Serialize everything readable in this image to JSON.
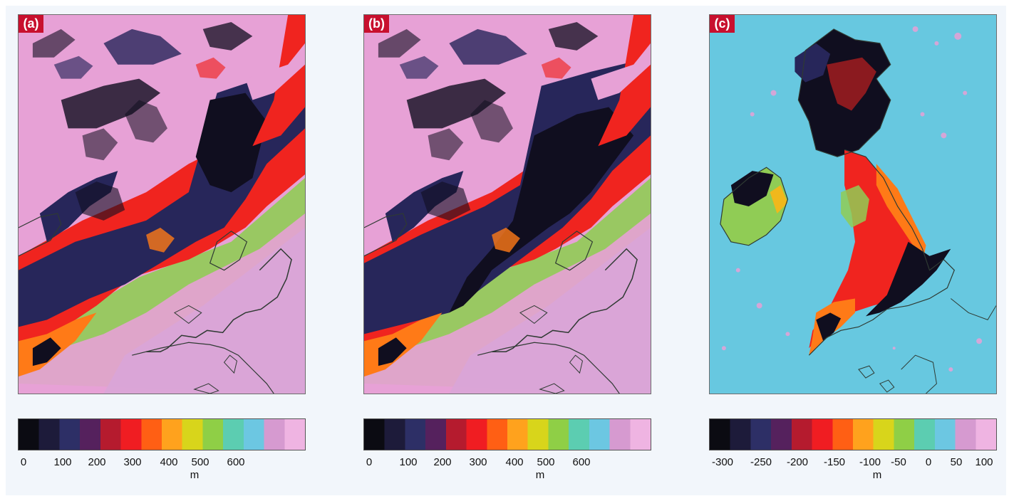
{
  "panels": [
    {
      "label": "(a)",
      "colorbar": {
        "unit": "m",
        "ticks": [
          "0",
          "100",
          "200",
          "300",
          "400",
          "500",
          "600"
        ],
        "colors": [
          "#0b0b12",
          "#1d1b3a",
          "#2d2f66",
          "#55215d",
          "#b51b2e",
          "#f01d22",
          "#ff5f14",
          "#ffa21d",
          "#d8d51b",
          "#8fcf46",
          "#5ccdb1",
          "#6cc7e2",
          "#d69ad0",
          "#efb4e2"
        ]
      }
    },
    {
      "label": "(b)",
      "colorbar": {
        "unit": "m",
        "ticks": [
          "0",
          "100",
          "200",
          "300",
          "400",
          "500",
          "600"
        ],
        "colors": [
          "#0b0b12",
          "#1d1b3a",
          "#2d2f66",
          "#55215d",
          "#b51b2e",
          "#f01d22",
          "#ff5f14",
          "#ffa21d",
          "#d8d51b",
          "#8fcf46",
          "#5ccdb1",
          "#6cc7e2",
          "#d69ad0",
          "#efb4e2"
        ]
      }
    },
    {
      "label": "(c)",
      "colorbar": {
        "unit": "m",
        "ticks": [
          "-300",
          "-250",
          "-200",
          "-150",
          "-100",
          "-50",
          "0",
          "50",
          "100"
        ],
        "colors": [
          "#0b0b12",
          "#1d1b3a",
          "#2d2f66",
          "#55215d",
          "#b51b2e",
          "#f01d22",
          "#ff5f14",
          "#ffa21d",
          "#d8d51b",
          "#8fcf46",
          "#5ccdb1",
          "#6cc7e2",
          "#d69ad0",
          "#efb4e2"
        ]
      }
    }
  ],
  "map_colors": {
    "pink": "#e7a1d6",
    "navy": "#27265a",
    "dark": "#100e1f",
    "red": "#f0241f",
    "orange": "#ff7a17",
    "yellow": "#f0b81c",
    "green": "#90cc55",
    "cyan": "#67c8e0",
    "coast": "#2f3a33"
  }
}
